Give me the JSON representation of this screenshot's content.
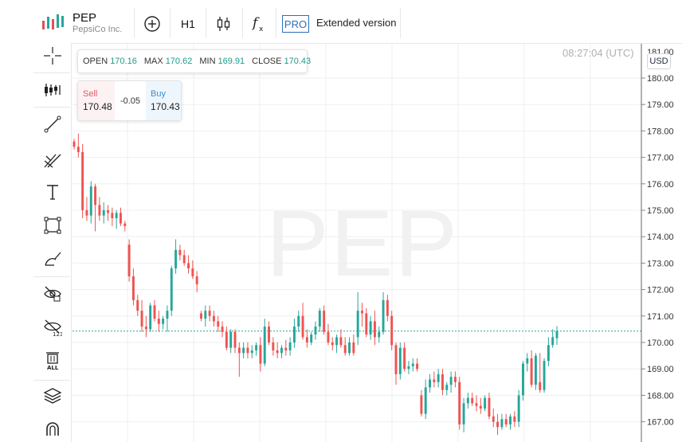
{
  "header": {
    "symbol": "PEP",
    "company": "PepsiCo Inc.",
    "timeframe": "H1",
    "pro_badge": "PRO",
    "extended_label": "Extended version"
  },
  "ohlc": {
    "open_label": "OPEN",
    "open": "170.16",
    "max_label": "MAX",
    "max": "170.62",
    "min_label": "MIN",
    "min": "169.91",
    "close_label": "CLOSE",
    "close": "170.43"
  },
  "trade": {
    "sell_label": "Sell",
    "sell_price": "170.48",
    "spread": "-0.05",
    "buy_label": "Buy",
    "buy_price": "170.43"
  },
  "chart": {
    "watermark": "PEP",
    "clock": "08:27:04 (UTC)",
    "currency": "USD",
    "up_color": "#26a69a",
    "down_color": "#ef5350",
    "current_price": 170.43
  },
  "left_toolbar": {
    "icons": [
      "crosshair-icon",
      "indicators-icon",
      "trend-line-icon",
      "pitchfork-icon",
      "text-icon",
      "rectangle-icon",
      "brush-icon",
      "hide-drawings-icon",
      "hide-values-icon",
      "delete-all-icon",
      "layers-icon",
      "magnet-icon"
    ]
  },
  "chart_data": {
    "type": "candlestick",
    "y_ticks": [
      "167.00",
      "168.00",
      "169.00",
      "170.00",
      "171.00",
      "172.00",
      "173.00",
      "174.00",
      "175.00",
      "176.00",
      "177.00",
      "178.00",
      "179.00",
      "180.00"
    ],
    "ylim": [
      166.5,
      181.2
    ],
    "candles": [
      [
        177.6,
        177.7,
        177.3,
        177.4
      ],
      [
        177.4,
        177.9,
        177.0,
        177.2
      ],
      [
        177.2,
        177.5,
        174.7,
        175.0
      ],
      [
        175.0,
        175.5,
        174.6,
        174.8
      ],
      [
        174.8,
        176.1,
        174.5,
        175.9
      ],
      [
        175.9,
        176.0,
        174.2,
        175.2
      ],
      [
        175.2,
        175.5,
        174.6,
        174.8
      ],
      [
        174.8,
        175.3,
        174.5,
        175.0
      ],
      [
        175.0,
        175.2,
        174.6,
        174.9
      ],
      [
        174.9,
        175.1,
        174.4,
        174.7
      ],
      [
        174.7,
        175.0,
        174.3,
        174.9
      ],
      [
        174.9,
        175.1,
        174.4,
        174.5
      ],
      [
        174.5,
        174.6,
        174.2,
        174.4
      ],
      [
        173.7,
        173.9,
        172.3,
        172.5
      ],
      [
        172.5,
        172.8,
        171.4,
        171.6
      ],
      [
        171.6,
        171.8,
        171.0,
        171.2
      ],
      [
        171.2,
        171.6,
        170.4,
        170.6
      ],
      [
        170.6,
        171.0,
        170.2,
        170.5
      ],
      [
        170.5,
        171.5,
        170.4,
        171.4
      ],
      [
        171.4,
        171.6,
        170.8,
        170.9
      ],
      [
        170.9,
        171.2,
        170.4,
        170.7
      ],
      [
        170.7,
        171.0,
        170.5,
        170.9
      ],
      [
        170.9,
        171.4,
        170.4,
        171.2
      ],
      [
        171.2,
        172.9,
        171.0,
        172.8
      ],
      [
        172.8,
        173.9,
        172.6,
        173.5
      ],
      [
        173.5,
        173.7,
        173.1,
        173.3
      ],
      [
        173.3,
        173.5,
        172.9,
        173.0
      ],
      [
        173.0,
        173.3,
        172.6,
        172.8
      ],
      [
        172.8,
        173.1,
        172.4,
        172.5
      ],
      [
        172.5,
        172.7,
        171.9,
        172.2
      ],
      [
        171.1,
        171.2,
        170.8,
        170.9
      ],
      [
        170.9,
        171.4,
        170.6,
        171.2
      ],
      [
        171.2,
        171.4,
        170.8,
        171.0
      ],
      [
        171.0,
        171.2,
        170.6,
        170.8
      ],
      [
        170.8,
        171.0,
        170.4,
        170.6
      ],
      [
        170.6,
        170.8,
        170.2,
        170.4
      ],
      [
        170.4,
        170.6,
        169.7,
        169.8
      ],
      [
        169.8,
        170.5,
        169.6,
        170.4
      ],
      [
        170.4,
        170.5,
        169.6,
        169.8
      ],
      [
        169.8,
        170.0,
        168.7,
        169.6
      ],
      [
        169.6,
        170.0,
        169.4,
        169.8
      ],
      [
        169.8,
        170.0,
        169.4,
        169.6
      ],
      [
        169.6,
        169.9,
        169.4,
        169.7
      ],
      [
        169.7,
        170.0,
        169.5,
        169.9
      ],
      [
        169.9,
        170.2,
        168.9,
        169.2
      ],
      [
        169.2,
        170.9,
        169.1,
        170.6
      ],
      [
        170.6,
        170.8,
        169.9,
        170.0
      ],
      [
        170.0,
        170.2,
        169.5,
        169.7
      ],
      [
        169.7,
        170.0,
        169.4,
        169.6
      ],
      [
        169.6,
        169.9,
        169.4,
        169.8
      ],
      [
        169.8,
        170.1,
        169.5,
        169.7
      ],
      [
        169.7,
        170.2,
        169.5,
        170.0
      ],
      [
        170.0,
        170.9,
        169.8,
        170.6
      ],
      [
        170.6,
        171.2,
        170.4,
        171.0
      ],
      [
        171.0,
        171.5,
        170.1,
        170.2
      ],
      [
        170.2,
        170.5,
        169.8,
        170.0
      ],
      [
        170.0,
        170.4,
        169.9,
        170.3
      ],
      [
        170.3,
        170.8,
        170.1,
        170.6
      ],
      [
        170.6,
        171.3,
        170.4,
        171.2
      ],
      [
        171.2,
        171.4,
        170.3,
        170.4
      ],
      [
        170.4,
        170.7,
        169.9,
        170.0
      ],
      [
        170.0,
        170.2,
        169.7,
        169.9
      ],
      [
        169.9,
        170.3,
        169.6,
        170.2
      ],
      [
        170.2,
        170.5,
        169.8,
        169.9
      ],
      [
        169.9,
        170.2,
        169.5,
        169.6
      ],
      [
        169.6,
        170.2,
        169.5,
        170.0
      ],
      [
        170.0,
        170.3,
        169.5,
        169.6
      ],
      [
        170.2,
        171.9,
        169.9,
        171.2
      ],
      [
        171.2,
        171.5,
        170.6,
        171.1
      ],
      [
        171.1,
        171.3,
        170.2,
        170.3
      ],
      [
        170.3,
        171.0,
        170.1,
        170.8
      ],
      [
        170.8,
        171.2,
        169.9,
        170.2
      ],
      [
        170.2,
        170.6,
        170.0,
        170.4
      ],
      [
        170.4,
        171.9,
        170.3,
        171.6
      ],
      [
        171.6,
        171.8,
        170.8,
        171.0
      ],
      [
        171.0,
        171.2,
        169.7,
        169.9
      ],
      [
        169.9,
        170.0,
        168.4,
        168.8
      ],
      [
        168.8,
        170.0,
        168.6,
        169.8
      ],
      [
        169.8,
        170.0,
        168.9,
        169.0
      ],
      [
        169.0,
        169.3,
        168.8,
        169.1
      ],
      [
        169.1,
        169.4,
        168.9,
        169.2
      ],
      [
        169.2,
        169.4,
        168.9,
        169.0
      ],
      [
        168.0,
        168.2,
        167.2,
        167.3
      ],
      [
        167.3,
        168.6,
        167.1,
        168.3
      ],
      [
        168.3,
        168.8,
        168.1,
        168.6
      ],
      [
        168.6,
        168.9,
        168.3,
        168.5
      ],
      [
        168.5,
        169.0,
        168.3,
        168.8
      ],
      [
        168.8,
        169.0,
        168.0,
        168.2
      ],
      [
        168.2,
        168.5,
        168.0,
        168.4
      ],
      [
        168.4,
        168.9,
        168.1,
        168.7
      ],
      [
        168.7,
        168.9,
        168.3,
        168.5
      ],
      [
        168.5,
        168.7,
        166.7,
        166.9
      ],
      [
        166.9,
        167.9,
        166.6,
        167.7
      ],
      [
        167.7,
        168.1,
        167.5,
        167.9
      ],
      [
        167.9,
        168.1,
        167.6,
        167.7
      ],
      [
        167.7,
        168.0,
        167.4,
        167.6
      ],
      [
        167.6,
        167.9,
        167.3,
        167.5
      ],
      [
        167.5,
        168.0,
        167.4,
        167.9
      ],
      [
        167.9,
        168.1,
        167.1,
        167.2
      ],
      [
        167.2,
        167.5,
        166.8,
        167.0
      ],
      [
        167.0,
        167.3,
        166.5,
        166.8
      ],
      [
        166.8,
        167.3,
        166.7,
        167.1
      ],
      [
        167.1,
        167.3,
        166.8,
        166.9
      ],
      [
        166.9,
        167.3,
        166.7,
        167.2
      ],
      [
        167.2,
        167.4,
        166.8,
        167.0
      ],
      [
        167.0,
        168.2,
        166.8,
        168.0
      ],
      [
        168.0,
        169.3,
        167.8,
        169.2
      ],
      [
        169.2,
        169.6,
        168.9,
        169.4
      ],
      [
        169.4,
        169.7,
        168.3,
        168.4
      ],
      [
        168.4,
        169.6,
        168.2,
        169.5
      ],
      [
        168.5,
        169.6,
        168.1,
        168.2
      ],
      [
        168.2,
        169.4,
        168.1,
        169.3
      ],
      [
        169.3,
        170.2,
        169.1,
        169.9
      ],
      [
        169.9,
        170.5,
        169.8,
        170.2
      ],
      [
        170.16,
        170.62,
        169.91,
        170.43
      ]
    ]
  }
}
